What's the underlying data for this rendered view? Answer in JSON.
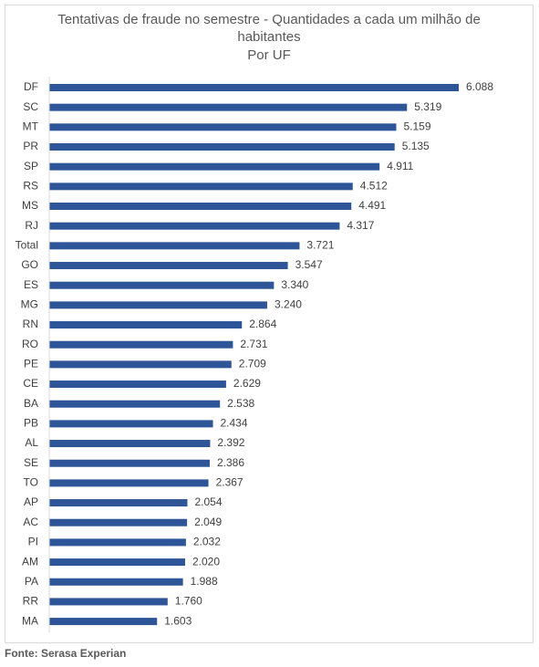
{
  "chart_data": {
    "type": "bar",
    "orientation": "horizontal",
    "title": "Tentativas de fraude no semestre - Quantidades a cada um milhão de habitantes",
    "subtitle": "Por UF",
    "source": "Fonte: Serasa Experian",
    "color": "#2e5597",
    "categories": [
      "DF",
      "SC",
      "MT",
      "PR",
      "SP",
      "RS",
      "MS",
      "RJ",
      "Total",
      "GO",
      "ES",
      "MG",
      "RN",
      "RO",
      "PE",
      "CE",
      "BA",
      "PB",
      "AL",
      "SE",
      "TO",
      "AP",
      "AC",
      "PI",
      "AM",
      "PA",
      "RR",
      "MA"
    ],
    "values": [
      6088,
      5319,
      5159,
      5135,
      4911,
      4512,
      4491,
      4317,
      3721,
      3547,
      3340,
      3240,
      2864,
      2731,
      2709,
      2629,
      2538,
      2434,
      2392,
      2386,
      2367,
      2054,
      2049,
      2032,
      2020,
      1988,
      1760,
      1603
    ],
    "value_labels": [
      "6.088",
      "5.319",
      "5.159",
      "5.135",
      "4.911",
      "4.512",
      "4.491",
      "4.317",
      "3.721",
      "3.547",
      "3.340",
      "3.240",
      "2.864",
      "2.731",
      "2.709",
      "2.629",
      "2.538",
      "2.434",
      "2.392",
      "2.386",
      "2.367",
      "2.054",
      "2.049",
      "2.032",
      "2.020",
      "1.988",
      "1.760",
      "1.603"
    ]
  }
}
